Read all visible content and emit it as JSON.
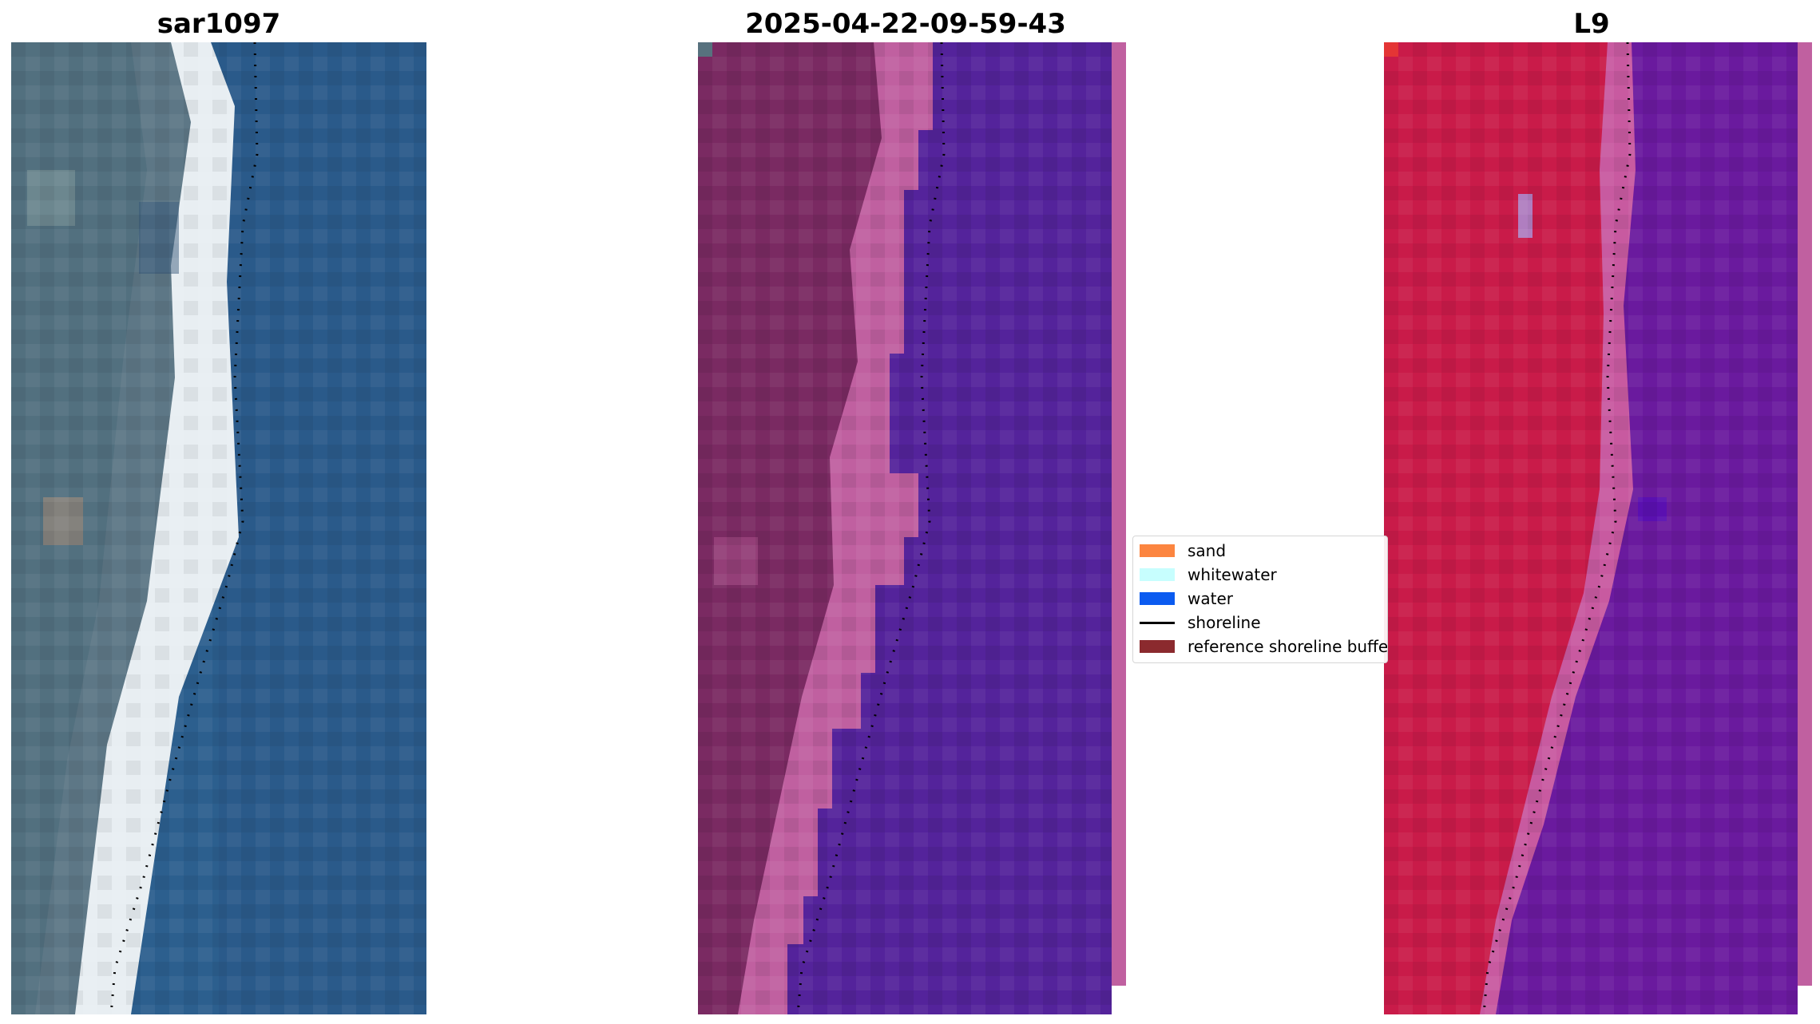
{
  "titles": {
    "panel1": "sar1097",
    "panel2": "2025-04-22-09-59-43",
    "panel3": "L9"
  },
  "legend": {
    "items": [
      {
        "label": "sand",
        "color": "#fc8540",
        "kind": "patch"
      },
      {
        "label": "whitewater",
        "color": "#c7fefe",
        "kind": "patch"
      },
      {
        "label": "water",
        "color": "#0b5bf0",
        "kind": "patch"
      },
      {
        "label": "shoreline",
        "color": "#000000",
        "kind": "line"
      },
      {
        "label": "reference shoreline buffer",
        "color": "#8b2a2e",
        "kind": "patch"
      }
    ]
  },
  "colors": {
    "rgb_land": "#52707f",
    "rgb_beach": "#e8eef2",
    "rgb_water": "#2c5f8e",
    "class_land": "#7a2a62",
    "class_beach": "#c060a0",
    "class_water": "#54239b",
    "index_land": "#c91b49",
    "index_beach": "#c85aa0",
    "index_water": "#6a1a9e"
  }
}
